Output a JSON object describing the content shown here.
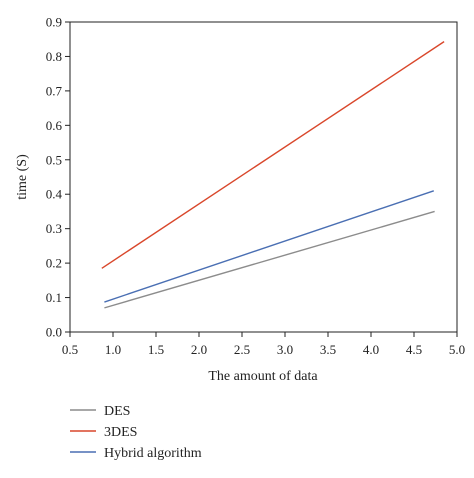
{
  "chart_data": {
    "type": "line",
    "title": "",
    "xlabel": "The amount of data",
    "ylabel": "time (S)",
    "xlim": [
      0.5,
      5.0
    ],
    "ylim": [
      0.0,
      0.9
    ],
    "xticks": [
      0.5,
      1.0,
      1.5,
      2.0,
      2.5,
      3.0,
      3.5,
      4.0,
      4.5,
      5.0
    ],
    "yticks": [
      0.0,
      0.1,
      0.2,
      0.3,
      0.4,
      0.5,
      0.6,
      0.7,
      0.8,
      0.9
    ],
    "xtick_labels": [
      "0.5",
      "1.0",
      "1.5",
      "2.0",
      "2.5",
      "3.0",
      "3.5",
      "4.0",
      "4.5",
      "5.0"
    ],
    "ytick_labels": [
      "0.0",
      "0.1",
      "0.2",
      "0.3",
      "0.4",
      "0.5",
      "0.6",
      "0.7",
      "0.8",
      "0.9"
    ],
    "grid": false,
    "legend_position": "bottom-left, below plot",
    "series": [
      {
        "name": "DES",
        "color": "#8c8c8c",
        "x": [
          0.9,
          4.74
        ],
        "y": [
          0.07,
          0.35
        ]
      },
      {
        "name": "3DES",
        "color": "#d9472b",
        "x": [
          0.87,
          4.85
        ],
        "y": [
          0.185,
          0.843
        ]
      },
      {
        "name": "Hybrid algorithm",
        "color": "#4a6fb3",
        "x": [
          0.9,
          4.73
        ],
        "y": [
          0.087,
          0.41
        ]
      }
    ]
  }
}
